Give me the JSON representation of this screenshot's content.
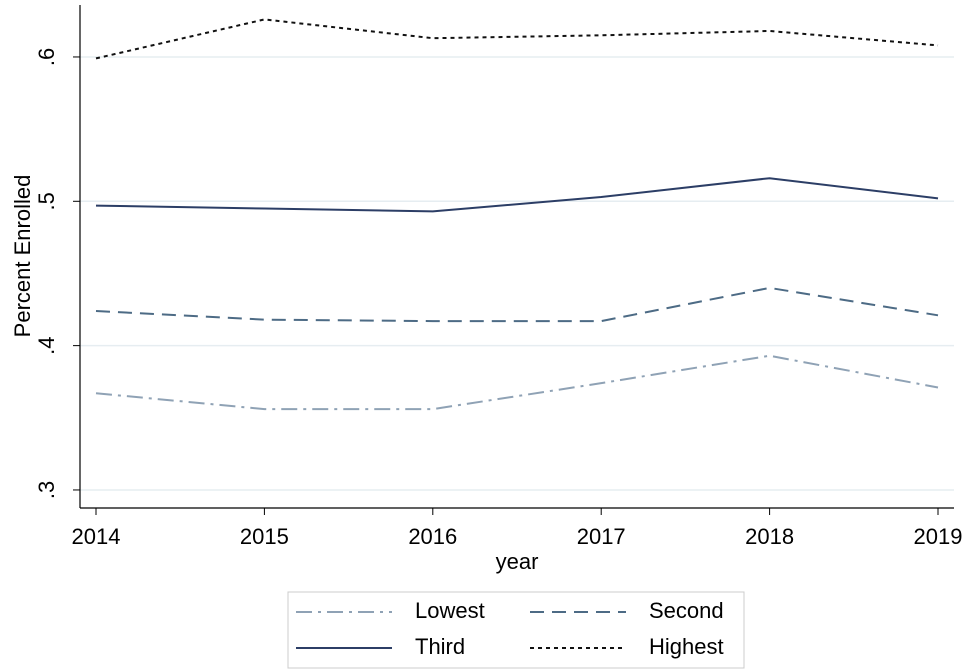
{
  "chart_data": {
    "type": "line",
    "x_label": "year",
    "y_label": "Percent Enrolled",
    "x": [
      2014,
      2015,
      2016,
      2017,
      2018,
      2019
    ],
    "xlim": [
      2013.905,
      2019.095
    ],
    "xticks": [
      2014,
      2015,
      2016,
      2017,
      2018,
      2019
    ],
    "ylim": [
      0.2875,
      0.636
    ],
    "yticks": [
      {
        "value": 0.3,
        "label": ".3"
      },
      {
        "value": 0.4,
        "label": ".4"
      },
      {
        "value": 0.5,
        "label": ".5"
      },
      {
        "value": 0.6,
        "label": ".6"
      }
    ],
    "grid": true,
    "series": [
      {
        "name": "Lowest",
        "color": "#8fa2b5",
        "dash": "dashdot",
        "values": [
          0.367,
          0.356,
          0.356,
          0.374,
          0.393,
          0.371
        ]
      },
      {
        "name": "Second",
        "color": "#4d6b85",
        "dash": "dash",
        "values": [
          0.424,
          0.418,
          0.417,
          0.417,
          0.44,
          0.421
        ]
      },
      {
        "name": "Third",
        "color": "#2c3e66",
        "dash": "solid",
        "values": [
          0.497,
          0.495,
          0.493,
          0.503,
          0.516,
          0.502
        ]
      },
      {
        "name": "Highest",
        "color": "#111111",
        "dash": "dot",
        "values": [
          0.599,
          0.626,
          0.613,
          0.615,
          0.618,
          0.608
        ]
      }
    ]
  }
}
